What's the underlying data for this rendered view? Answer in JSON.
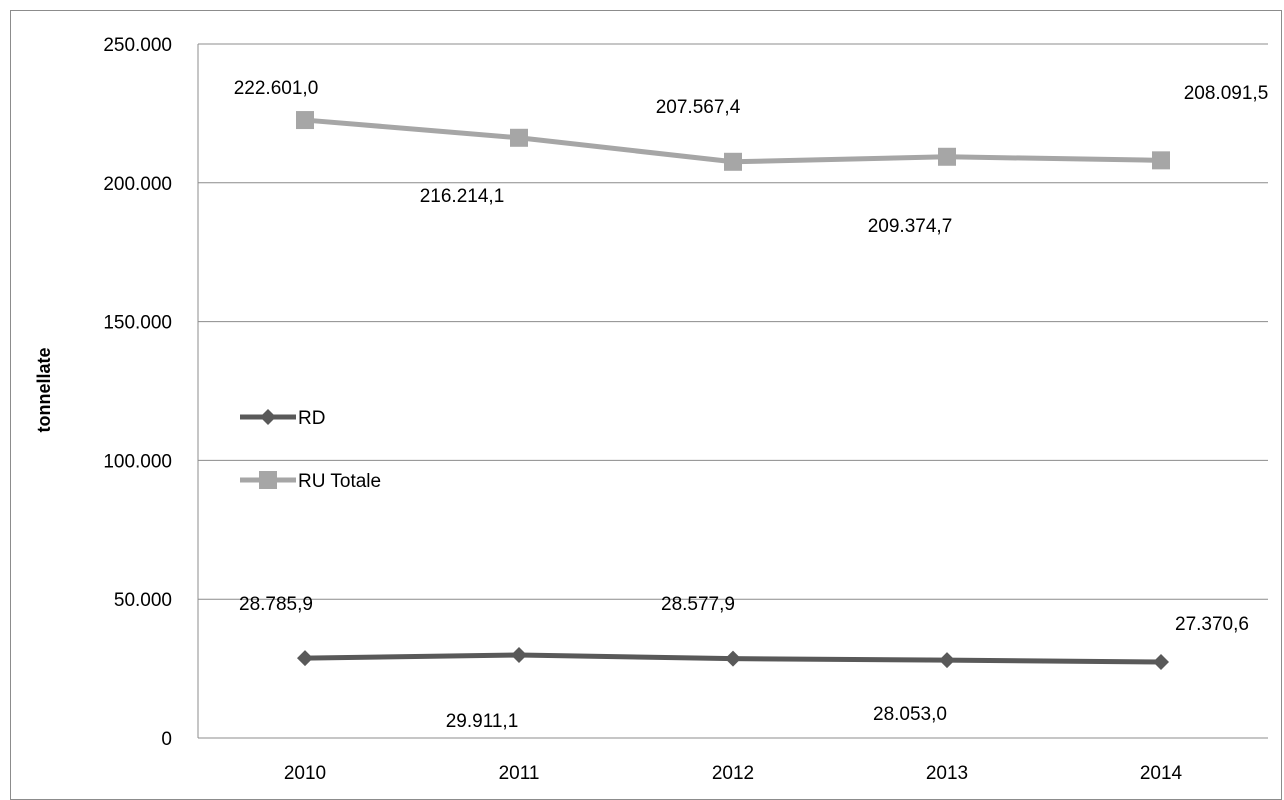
{
  "chart_data": {
    "type": "line",
    "categories": [
      "2010",
      "2011",
      "2012",
      "2013",
      "2014"
    ],
    "ylabel": "tonnellate",
    "ylim": [
      0,
      250000
    ],
    "y_ticks": [
      0,
      50000,
      100000,
      150000,
      200000,
      250000
    ],
    "y_tick_labels": [
      "0",
      "50.000",
      "100.000",
      "150.000",
      "200.000",
      "250.000"
    ],
    "grid": true,
    "legend_position": "left-middle",
    "series": [
      {
        "name": "RD",
        "values": [
          28785.9,
          29911.1,
          28577.9,
          28053.0,
          27370.6
        ],
        "labels": [
          "28.785,9",
          "29.911,1",
          "28.577,9",
          "28.053,0",
          "27.370,6"
        ],
        "color": "#595959",
        "marker": "diamond"
      },
      {
        "name": "RU Totale",
        "values": [
          222601.0,
          216214.1,
          207567.4,
          209374.7,
          208091.5
        ],
        "labels": [
          "222.601,0",
          "216.214,1",
          "207.567,4",
          "209.374,7",
          "208.091,5"
        ],
        "color": "#a6a6a6",
        "marker": "square"
      }
    ]
  }
}
